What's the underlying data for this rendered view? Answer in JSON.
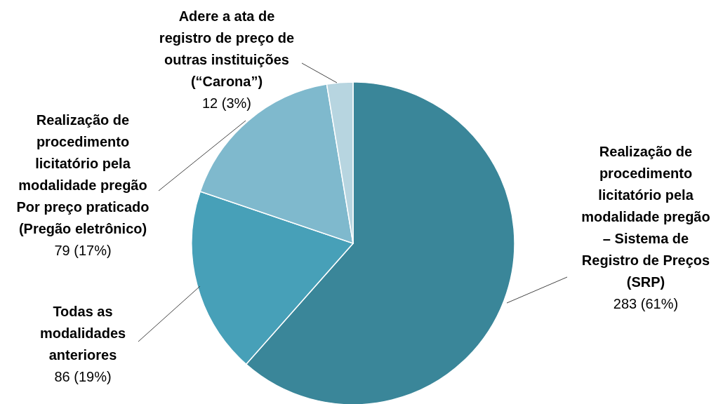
{
  "chart_data": {
    "type": "pie",
    "categories": [
      "Realização de procedimento licitatório pela modalidade pregão – Sistema de Registro de Preços (SRP)",
      "Todas as modalidades anteriores",
      "Realização de procedimento licitatório pela modalidade pregão Por preço praticado (Pregão eletrônico)",
      "Adere a ata de registro de preço de outras instituições (“Carona”)"
    ],
    "values": [
      283,
      86,
      79,
      12
    ],
    "value_labels": [
      "283 (61%)",
      "86 (19%)",
      "79 (17%)",
      "12 (3%)"
    ],
    "colors": [
      "#3a8699",
      "#47a0b8",
      "#7fb9cd",
      "#b7d5e0"
    ]
  }
}
